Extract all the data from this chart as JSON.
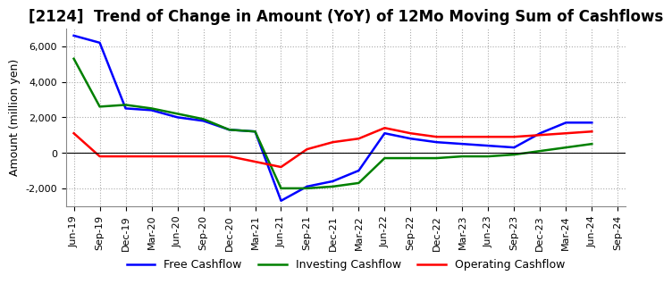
{
  "title": "[2124]  Trend of Change in Amount (YoY) of 12Mo Moving Sum of Cashflows",
  "ylabel": "Amount (million yen)",
  "x_labels": [
    "Jun-19",
    "Sep-19",
    "Dec-19",
    "Mar-20",
    "Jun-20",
    "Sep-20",
    "Dec-20",
    "Mar-21",
    "Jun-21",
    "Sep-21",
    "Dec-21",
    "Mar-22",
    "Jun-22",
    "Sep-22",
    "Dec-22",
    "Mar-23",
    "Jun-23",
    "Sep-23",
    "Dec-23",
    "Mar-24",
    "Jun-24",
    "Sep-24"
  ],
  "operating": [
    1100,
    -200,
    -200,
    -200,
    -200,
    -200,
    -200,
    -500,
    -800,
    200,
    600,
    800,
    1400,
    1100,
    900,
    900,
    900,
    900,
    1000,
    1100,
    1200,
    null
  ],
  "investing": [
    5300,
    2600,
    2700,
    2500,
    2200,
    1900,
    1300,
    1200,
    -2000,
    -2000,
    -1900,
    -1700,
    -300,
    -300,
    -300,
    -200,
    -200,
    -100,
    100,
    300,
    500,
    null
  ],
  "free": [
    6600,
    6200,
    2500,
    2400,
    2000,
    1800,
    1300,
    1200,
    -2700,
    -1900,
    -1600,
    -1000,
    1100,
    800,
    600,
    500,
    400,
    300,
    1100,
    1700,
    1700,
    null
  ],
  "operating_color": "#ff0000",
  "investing_color": "#008000",
  "free_color": "#0000ff",
  "ylim": [
    -3000,
    7000
  ],
  "yticks": [
    -2000,
    0,
    2000,
    4000,
    6000
  ],
  "background_color": "#ffffff",
  "grid_color": "#aaaaaa",
  "title_fontsize": 12,
  "axis_fontsize": 9,
  "tick_fontsize": 8,
  "legend_fontsize": 9
}
